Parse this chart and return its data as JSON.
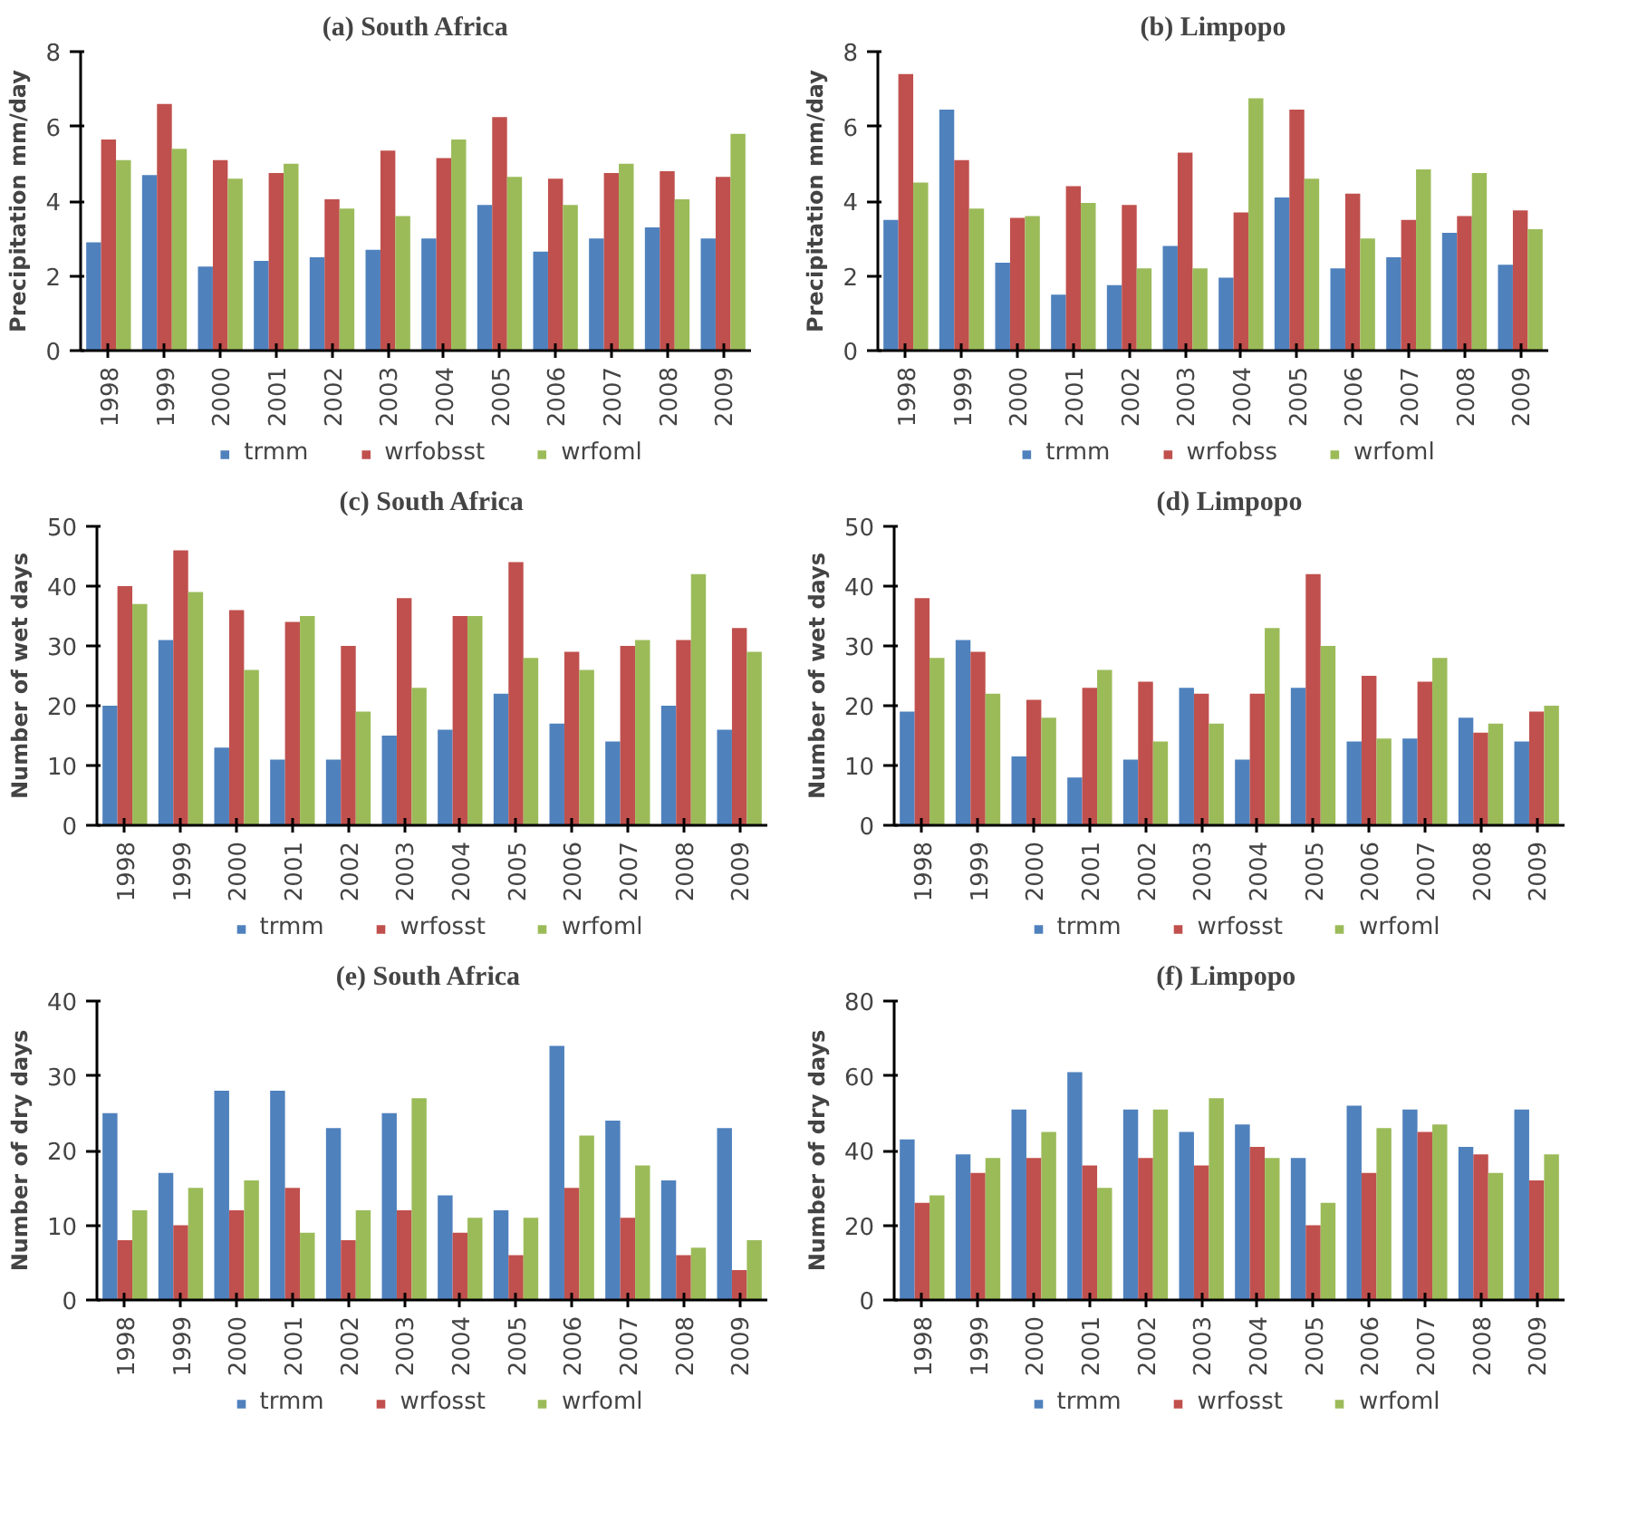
{
  "chart_data": [
    {
      "type": "bar",
      "title": "(a) South Africa",
      "ylabel": "Precipitation mm/day",
      "categories": [
        "1998",
        "1999",
        "2000",
        "2001",
        "2002",
        "2003",
        "2004",
        "2005",
        "2006",
        "2007",
        "2008",
        "2009"
      ],
      "ylim": [
        0,
        8
      ],
      "yticks": [
        0,
        2,
        4,
        6,
        8
      ],
      "grid": false,
      "legend": "bottom",
      "series": [
        {
          "name": "trmm",
          "color": "#4f81bd",
          "values": [
            2.9,
            4.7,
            2.25,
            2.4,
            2.5,
            2.7,
            3.0,
            3.9,
            2.65,
            3.0,
            3.3,
            3.0
          ]
        },
        {
          "name": "wrfobsst",
          "color": "#c0504d",
          "values": [
            5.65,
            6.6,
            5.1,
            4.75,
            4.05,
            5.35,
            5.15,
            6.25,
            4.6,
            4.75,
            4.8,
            4.65
          ]
        },
        {
          "name": "wrfoml",
          "color": "#9bbb59",
          "values": [
            5.1,
            5.4,
            4.6,
            5.0,
            3.8,
            3.6,
            5.65,
            4.65,
            3.9,
            5.0,
            4.05,
            5.8
          ]
        }
      ]
    },
    {
      "type": "bar",
      "title": "(b) Limpopo",
      "ylabel": "Precipitation mm/day",
      "categories": [
        "1998",
        "1999",
        "2000",
        "2001",
        "2002",
        "2003",
        "2004",
        "2005",
        "2006",
        "2007",
        "2008",
        "2009"
      ],
      "ylim": [
        0,
        8
      ],
      "yticks": [
        0,
        2,
        4,
        6,
        8
      ],
      "grid": false,
      "legend": "bottom",
      "series": [
        {
          "name": "trmm",
          "color": "#4f81bd",
          "values": [
            3.5,
            6.45,
            2.35,
            1.5,
            1.75,
            2.8,
            1.95,
            4.1,
            2.2,
            2.5,
            3.15,
            2.3
          ]
        },
        {
          "name": "wrfobss",
          "color": "#c0504d",
          "values": [
            7.4,
            5.1,
            3.55,
            4.4,
            3.9,
            5.3,
            3.7,
            6.45,
            4.2,
            3.5,
            3.6,
            3.75
          ]
        },
        {
          "name": "wrfoml",
          "color": "#9bbb59",
          "values": [
            4.5,
            3.8,
            3.6,
            3.95,
            2.2,
            2.2,
            6.75,
            4.6,
            3.0,
            4.85,
            4.75,
            3.25
          ]
        }
      ]
    },
    {
      "type": "bar",
      "title": "(c) South Africa",
      "ylabel": "Number of wet days",
      "categories": [
        "1998",
        "1999",
        "2000",
        "2001",
        "2002",
        "2003",
        "2004",
        "2005",
        "2006",
        "2007",
        "2008",
        "2009"
      ],
      "ylim": [
        0,
        50
      ],
      "yticks": [
        0,
        10,
        20,
        30,
        40,
        50
      ],
      "grid": false,
      "legend": "bottom",
      "series": [
        {
          "name": "trmm",
          "color": "#4f81bd",
          "values": [
            20,
            31,
            13,
            11,
            11,
            15,
            16,
            22,
            17,
            14,
            20,
            16
          ]
        },
        {
          "name": "wrfosst",
          "color": "#c0504d",
          "values": [
            40,
            46,
            36,
            34,
            30,
            38,
            35,
            44,
            29,
            30,
            31,
            33
          ]
        },
        {
          "name": "wrfoml",
          "color": "#9bbb59",
          "values": [
            37,
            39,
            26,
            35,
            19,
            23,
            35,
            28,
            26,
            31,
            42,
            29
          ]
        }
      ]
    },
    {
      "type": "bar",
      "title": "(d) Limpopo",
      "ylabel": "Number of wet days",
      "categories": [
        "1998",
        "1999",
        "2000",
        "2001",
        "2002",
        "2003",
        "2004",
        "2005",
        "2006",
        "2007",
        "2008",
        "2009"
      ],
      "ylim": [
        0,
        50
      ],
      "yticks": [
        0,
        10,
        20,
        30,
        40,
        50
      ],
      "grid": false,
      "legend": "bottom",
      "series": [
        {
          "name": "trmm",
          "color": "#4f81bd",
          "values": [
            19,
            31,
            11.5,
            8,
            11,
            23,
            11,
            23,
            14,
            14.5,
            18,
            14
          ]
        },
        {
          "name": "wrfosst",
          "color": "#c0504d",
          "values": [
            38,
            29,
            21,
            23,
            24,
            22,
            22,
            42,
            25,
            24,
            15.5,
            19
          ]
        },
        {
          "name": "wrfoml",
          "color": "#9bbb59",
          "values": [
            28,
            22,
            18,
            26,
            14,
            17,
            33,
            30,
            14.5,
            28,
            17,
            20
          ]
        }
      ]
    },
    {
      "type": "bar",
      "title": "(e)  South Africa",
      "ylabel": "Number of dry days",
      "categories": [
        "1998",
        "1999",
        "2000",
        "2001",
        "2002",
        "2003",
        "2004",
        "2005",
        "2006",
        "2007",
        "2008",
        "2009"
      ],
      "ylim": [
        0,
        40
      ],
      "yticks": [
        0,
        10,
        20,
        30,
        40
      ],
      "grid": false,
      "legend": "bottom",
      "series": [
        {
          "name": "trmm",
          "color": "#4f81bd",
          "values": [
            25,
            17,
            28,
            28,
            23,
            25,
            14,
            12,
            34,
            24,
            16,
            23
          ]
        },
        {
          "name": "wrfosst",
          "color": "#c0504d",
          "values": [
            8,
            10,
            12,
            15,
            8,
            12,
            9,
            6,
            15,
            11,
            6,
            4
          ]
        },
        {
          "name": "wrfoml",
          "color": "#9bbb59",
          "values": [
            12,
            15,
            16,
            9,
            12,
            27,
            11,
            11,
            22,
            18,
            7,
            8
          ]
        }
      ]
    },
    {
      "type": "bar",
      "title": "(f)  Limpopo",
      "ylabel": "Number of dry days",
      "categories": [
        "1998",
        "1999",
        "2000",
        "2001",
        "2002",
        "2003",
        "2004",
        "2005",
        "2006",
        "2007",
        "2008",
        "2009"
      ],
      "ylim": [
        0,
        80
      ],
      "yticks": [
        0,
        20,
        40,
        60,
        80
      ],
      "grid": false,
      "legend": "bottom",
      "series": [
        {
          "name": "trmm",
          "color": "#4f81bd",
          "values": [
            43,
            39,
            51,
            61,
            51,
            45,
            47,
            38,
            52,
            51,
            41,
            51
          ]
        },
        {
          "name": "wrfosst",
          "color": "#c0504d",
          "values": [
            26,
            34,
            38,
            36,
            38,
            36,
            41,
            20,
            34,
            45,
            39,
            32
          ]
        },
        {
          "name": "wrfoml",
          "color": "#9bbb59",
          "values": [
            28,
            38,
            45,
            30,
            51,
            54,
            38,
            26,
            46,
            47,
            34,
            39
          ]
        }
      ]
    }
  ]
}
